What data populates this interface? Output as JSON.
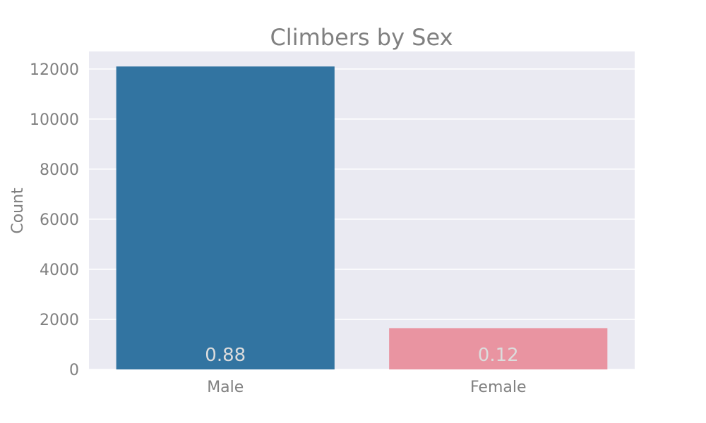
{
  "chart_data": {
    "type": "bar",
    "title": "Climbers by Sex",
    "xlabel": "",
    "ylabel": "Count",
    "categories": [
      "Male",
      "Female"
    ],
    "values": [
      12100,
      1650
    ],
    "data_labels": [
      "0.88",
      "0.12"
    ],
    "colors": [
      "#3274a1",
      "#e994a1"
    ],
    "ylim": [
      0,
      12700
    ],
    "yticks": [
      0,
      2000,
      4000,
      6000,
      8000,
      10000,
      12000
    ],
    "grid": true,
    "plot_background": "#eaeaf2",
    "grid_color": "#ffffff"
  }
}
